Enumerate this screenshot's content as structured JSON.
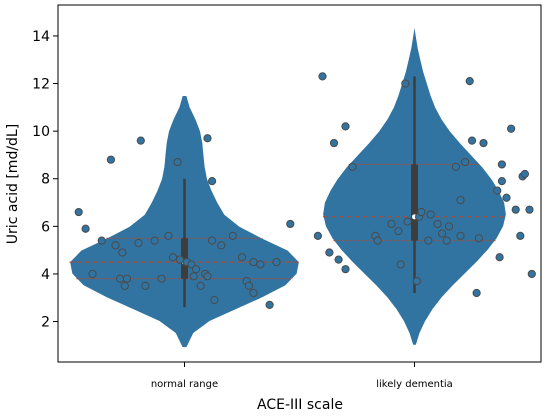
{
  "chart_data": {
    "type": "violin",
    "xlabel": "ACE-III scale",
    "ylabel": "Uric acid [md/dL]",
    "categories": [
      "normal range",
      "likely dementia"
    ],
    "ylim": [
      0.3,
      15.3
    ],
    "yticks": [
      2,
      4,
      6,
      8,
      10,
      12,
      14
    ],
    "grid": false,
    "colors": {
      "violin_fill": "#3274a1",
      "violin_edge": "#ffffff",
      "quartile_line": "#b0492e",
      "point_fill": "#3274a1",
      "point_edge": "#4a4a4a",
      "box": "#3d3d3d"
    },
    "violins": [
      {
        "category": "normal range",
        "density": [
          [
            0.9,
            0.02
          ],
          [
            1.5,
            0.08
          ],
          [
            2.0,
            0.22
          ],
          [
            2.5,
            0.45
          ],
          [
            3.0,
            0.68
          ],
          [
            3.5,
            0.88
          ],
          [
            4.0,
            0.98
          ],
          [
            4.5,
            1.0
          ],
          [
            5.0,
            0.9
          ],
          [
            5.5,
            0.68
          ],
          [
            6.0,
            0.48
          ],
          [
            6.5,
            0.35
          ],
          [
            7.0,
            0.29
          ],
          [
            7.5,
            0.24
          ],
          [
            8.0,
            0.2
          ],
          [
            8.5,
            0.18
          ],
          [
            9.0,
            0.17
          ],
          [
            9.5,
            0.16
          ],
          [
            10.0,
            0.14
          ],
          [
            10.5,
            0.1
          ],
          [
            11.0,
            0.05
          ],
          [
            11.5,
            0.02
          ]
        ],
        "max_halfwidth": 0.5,
        "quartiles": [
          3.8,
          4.5,
          5.5
        ],
        "whiskers": [
          2.6,
          8.0
        ],
        "median": 4.5,
        "points": [
          [
            -0.46,
            6.6
          ],
          [
            -0.43,
            5.9
          ],
          [
            -0.36,
            5.4
          ],
          [
            -0.3,
            5.2
          ],
          [
            -0.27,
            4.9
          ],
          [
            -0.4,
            4.0
          ],
          [
            -0.28,
            3.8
          ],
          [
            -0.25,
            3.8
          ],
          [
            -0.26,
            3.5
          ],
          [
            -0.17,
            3.5
          ],
          [
            -0.1,
            3.8
          ],
          [
            -0.2,
            5.3
          ],
          [
            -0.13,
            5.4
          ],
          [
            -0.07,
            5.6
          ],
          [
            -0.05,
            4.7
          ],
          [
            -0.02,
            4.6
          ],
          [
            0.01,
            4.5
          ],
          [
            0.03,
            4.4
          ],
          [
            0.05,
            4.2
          ],
          [
            0.04,
            3.9
          ],
          [
            0.07,
            3.5
          ],
          [
            0.09,
            4.0
          ],
          [
            0.1,
            3.9
          ],
          [
            0.13,
            2.9
          ],
          [
            0.12,
            5.4
          ],
          [
            0.16,
            5.2
          ],
          [
            0.21,
            5.6
          ],
          [
            0.25,
            4.7
          ],
          [
            0.27,
            3.7
          ],
          [
            0.28,
            3.5
          ],
          [
            0.3,
            4.5
          ],
          [
            0.3,
            3.2
          ],
          [
            0.33,
            4.4
          ],
          [
            0.37,
            2.7
          ],
          [
            0.4,
            4.5
          ],
          [
            0.46,
            6.1
          ],
          [
            -0.32,
            8.8
          ],
          [
            -0.19,
            9.6
          ],
          [
            -0.03,
            8.7
          ],
          [
            0.1,
            9.7
          ],
          [
            0.12,
            7.9
          ]
        ]
      },
      {
        "category": "likely dementia",
        "density": [
          [
            1.0,
            0.02
          ],
          [
            1.5,
            0.06
          ],
          [
            2.0,
            0.12
          ],
          [
            2.5,
            0.2
          ],
          [
            3.0,
            0.3
          ],
          [
            3.5,
            0.42
          ],
          [
            4.0,
            0.55
          ],
          [
            4.5,
            0.68
          ],
          [
            5.0,
            0.8
          ],
          [
            5.5,
            0.9
          ],
          [
            6.0,
            0.97
          ],
          [
            6.5,
            1.0
          ],
          [
            7.0,
            0.98
          ],
          [
            7.5,
            0.92
          ],
          [
            8.0,
            0.84
          ],
          [
            8.5,
            0.74
          ],
          [
            9.0,
            0.62
          ],
          [
            9.5,
            0.5
          ],
          [
            10.0,
            0.39
          ],
          [
            10.5,
            0.3
          ],
          [
            11.0,
            0.23
          ],
          [
            11.5,
            0.18
          ],
          [
            12.0,
            0.14
          ],
          [
            12.5,
            0.1
          ],
          [
            13.0,
            0.07
          ],
          [
            13.5,
            0.04
          ],
          [
            14.0,
            0.02
          ],
          [
            14.5,
            0.0
          ]
        ],
        "max_halfwidth": 0.4,
        "quartiles": [
          5.4,
          6.4,
          8.6
        ],
        "whiskers": [
          3.2,
          12.3
        ],
        "median": 6.4,
        "points": [
          [
            -0.4,
            12.3
          ],
          [
            -0.3,
            10.2
          ],
          [
            -0.35,
            9.5
          ],
          [
            -0.27,
            8.5
          ],
          [
            -0.42,
            5.6
          ],
          [
            -0.37,
            4.9
          ],
          [
            -0.33,
            4.6
          ],
          [
            -0.3,
            4.2
          ],
          [
            -0.17,
            5.6
          ],
          [
            -0.16,
            5.4
          ],
          [
            -0.1,
            6.1
          ],
          [
            -0.07,
            5.8
          ],
          [
            -0.03,
            6.2
          ],
          [
            -0.06,
            4.4
          ],
          [
            -0.04,
            12.0
          ],
          [
            0.01,
            3.7
          ],
          [
            0.02,
            6.4
          ],
          [
            0.03,
            6.6
          ],
          [
            0.06,
            5.4
          ],
          [
            0.07,
            6.5
          ],
          [
            0.1,
            6.1
          ],
          [
            0.12,
            5.7
          ],
          [
            0.14,
            5.4
          ],
          [
            0.15,
            6.0
          ],
          [
            0.18,
            8.5
          ],
          [
            0.2,
            5.6
          ],
          [
            0.2,
            7.1
          ],
          [
            0.22,
            8.7
          ],
          [
            0.24,
            12.1
          ],
          [
            0.25,
            9.6
          ],
          [
            0.28,
            5.5
          ],
          [
            0.3,
            9.5
          ],
          [
            0.27,
            3.2
          ],
          [
            0.36,
            7.5
          ],
          [
            0.38,
            8.6
          ],
          [
            0.38,
            7.9
          ],
          [
            0.4,
            7.2
          ],
          [
            0.37,
            4.7
          ],
          [
            0.42,
            10.1
          ],
          [
            0.44,
            6.7
          ],
          [
            0.46,
            5.6
          ],
          [
            0.47,
            8.1
          ],
          [
            0.48,
            8.2
          ],
          [
            0.5,
            6.7
          ],
          [
            0.51,
            4.0
          ]
        ]
      }
    ]
  }
}
